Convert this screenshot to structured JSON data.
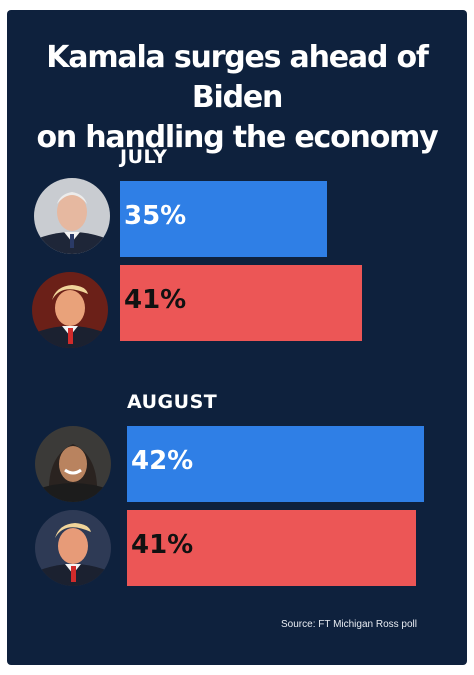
{
  "title_lines": [
    "Kamala surges ahead of Biden",
    "on handling the economy"
  ],
  "source": "Source: FT Michigan Ross poll",
  "colors": {
    "background": "#0e213d",
    "democrat_bar": "#2f7fe6",
    "republican_bar": "#ec5656",
    "text_on_democrat": "#ffffff",
    "text_on_republican": "#111111"
  },
  "chart_data": {
    "type": "bar",
    "orientation": "horizontal",
    "xlim": [
      0,
      50
    ],
    "groups": [
      {
        "label": "JULY",
        "bars": [
          {
            "value": 35,
            "label": "35%",
            "party": "democrat",
            "portrait": "biden-photo"
          },
          {
            "value": 41,
            "label": "41%",
            "party": "republican",
            "portrait": "trump-photo"
          }
        ]
      },
      {
        "label": "AUGUST",
        "bars": [
          {
            "value": 42,
            "label": "42%",
            "party": "democrat",
            "portrait": "harris-photo"
          },
          {
            "value": 41,
            "label": "41%",
            "party": "republican",
            "portrait": "trump-photo"
          }
        ]
      }
    ]
  }
}
